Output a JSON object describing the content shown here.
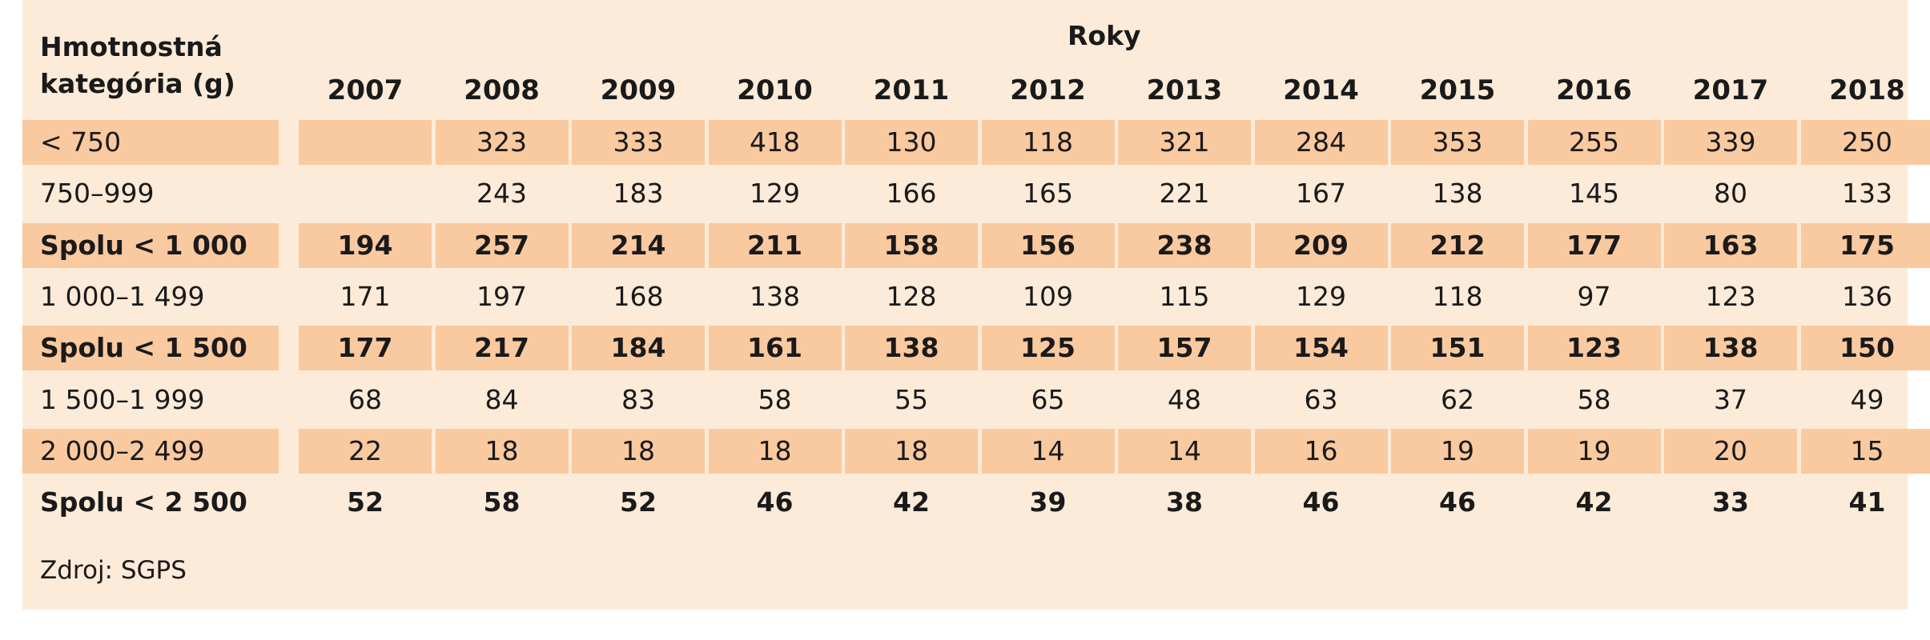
{
  "table": {
    "category_header_line1": "Hmotnostná",
    "category_header_line2": "kategória (g)",
    "years_header": "Roky",
    "years": [
      "2007",
      "2008",
      "2009",
      "2010",
      "2011",
      "2012",
      "2013",
      "2014",
      "2015",
      "2016",
      "2017",
      "2018"
    ],
    "rows": [
      {
        "label": "< 750",
        "shaded": true,
        "bold": false,
        "values": [
          "",
          "323",
          "333",
          "418",
          "130",
          "118",
          "321",
          "284",
          "353",
          "255",
          "339",
          "250"
        ]
      },
      {
        "label": "750–999",
        "shaded": false,
        "bold": false,
        "values": [
          "",
          "243",
          "183",
          "129",
          "166",
          "165",
          "221",
          "167",
          "138",
          "145",
          "80",
          "133"
        ]
      },
      {
        "label": "Spolu < 1 000",
        "shaded": true,
        "bold": true,
        "values": [
          "194",
          "257",
          "214",
          "211",
          "158",
          "156",
          "238",
          "209",
          "212",
          "177",
          "163",
          "175"
        ]
      },
      {
        "label": "1 000–1 499",
        "shaded": false,
        "bold": false,
        "values": [
          "171",
          "197",
          "168",
          "138",
          "128",
          "109",
          "115",
          "129",
          "118",
          "97",
          "123",
          "136"
        ]
      },
      {
        "label": "Spolu < 1 500",
        "shaded": true,
        "bold": true,
        "values": [
          "177",
          "217",
          "184",
          "161",
          "138",
          "125",
          "157",
          "154",
          "151",
          "123",
          "138",
          "150"
        ]
      },
      {
        "label": "1 500–1 999",
        "shaded": false,
        "bold": false,
        "values": [
          "68",
          "84",
          "83",
          "58",
          "55",
          "65",
          "48",
          "63",
          "62",
          "58",
          "37",
          "49"
        ]
      },
      {
        "label": "2 000–2 499",
        "shaded": true,
        "bold": false,
        "values": [
          "22",
          "18",
          "18",
          "18",
          "18",
          "14",
          "14",
          "16",
          "19",
          "19",
          "20",
          "15"
        ]
      },
      {
        "label": "Spolu < 2 500",
        "shaded": false,
        "bold": true,
        "values": [
          "52",
          "58",
          "52",
          "46",
          "42",
          "39",
          "38",
          "46",
          "46",
          "42",
          "33",
          "41"
        ]
      }
    ],
    "source": "Zdroj: SGPS"
  },
  "colors": {
    "panel_background": "#fdebd9",
    "shaded_row": "#f9c9a0"
  }
}
